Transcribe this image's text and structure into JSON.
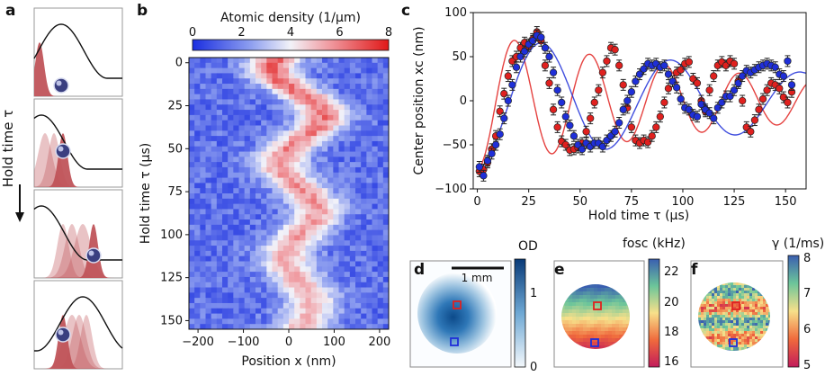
{
  "panels": {
    "a": "a",
    "b": "b",
    "c": "c",
    "d": "d",
    "e": "e",
    "f": "f"
  },
  "panel_a": {
    "axis_label": "Hold time τ",
    "colors": {
      "atom": "#c0545a",
      "trap": "#111111",
      "sphere": "#3a3f80"
    }
  },
  "panel_b": {
    "colorbar_label": "Atomic density (1/μm)",
    "colorbar_ticks": [
      "0",
      "2",
      "4",
      "6",
      "8"
    ],
    "xlabel": "Position x (nm)",
    "ylabel": "Hold time τ (μs)",
    "xticks": [
      "−200",
      "−100",
      "0",
      "100",
      "200"
    ],
    "yticks": [
      "0",
      "25",
      "50",
      "75",
      "100",
      "125",
      "150"
    ],
    "colormap": [
      "#1a2ee0",
      "#8fa0f0",
      "#f2f2f8",
      "#f09aa0",
      "#e01818"
    ]
  },
  "panel_d": {
    "scalebar_label": "1 mm",
    "colorbar_label": "OD",
    "colorbar_ticks": [
      "1",
      "0"
    ]
  },
  "panel_e": {
    "colorbar_label": "fosc (kHz)",
    "colorbar_ticks": [
      "22",
      "20",
      "18",
      "16"
    ]
  },
  "panel_f": {
    "colorbar_label": "γ (1/ms)",
    "colorbar_ticks": [
      "8",
      "7",
      "6",
      "5"
    ]
  },
  "chart_data": {
    "type": "scatter",
    "title": "",
    "xlabel": "Hold time τ (μs)",
    "ylabel": "Center position xc (nm)",
    "xlim": [
      -2,
      160
    ],
    "ylim": [
      -100,
      100
    ],
    "xticks": [
      "0",
      "25",
      "50",
      "75",
      "100",
      "125",
      "150"
    ],
    "yticks": [
      "100",
      "50",
      "0",
      "−50",
      "−100"
    ],
    "series": [
      {
        "color": "#e0211f",
        "x": [
          1,
          3,
          5,
          7,
          9,
          11,
          13,
          15,
          17,
          19,
          21,
          23,
          25,
          27,
          29,
          31,
          33,
          35,
          37,
          39,
          41,
          43,
          45,
          47,
          49,
          51,
          53,
          55,
          57,
          59,
          61,
          63,
          65,
          67,
          69,
          71,
          73,
          75,
          77,
          79,
          81,
          83,
          85,
          87,
          89,
          91,
          93,
          95,
          97,
          99,
          101,
          103,
          105,
          107,
          109,
          111,
          113,
          115,
          117,
          119,
          121,
          123,
          125,
          127,
          129,
          131,
          133,
          135,
          137,
          139,
          141,
          143,
          145,
          147,
          149,
          151,
          153
        ],
        "y": [
          -80,
          -78,
          -70,
          -55,
          -40,
          -12,
          8,
          28,
          45,
          50,
          60,
          66,
          62,
          70,
          78,
          68,
          40,
          20,
          -10,
          -30,
          -46,
          -50,
          -56,
          -55,
          -53,
          -48,
          -35,
          -20,
          -2,
          12,
          32,
          45,
          60,
          58,
          40,
          18,
          -8,
          -30,
          -45,
          -48,
          -45,
          -47,
          -40,
          -30,
          -18,
          -2,
          14,
          22,
          32,
          35,
          42,
          44,
          25,
          20,
          0,
          -12,
          12,
          28,
          40,
          44,
          40,
          45,
          42,
          22,
          0,
          -30,
          -35,
          -22,
          -10,
          2,
          12,
          20,
          18,
          14,
          4,
          -2,
          10
        ],
        "fit_amp": 78,
        "fit_period": 36.5,
        "fit_decay": 140
      },
      {
        "color": "#1f2fd8",
        "x": [
          1,
          3,
          5,
          7,
          9,
          11,
          13,
          15,
          17,
          19,
          21,
          23,
          25,
          27,
          29,
          31,
          33,
          35,
          37,
          39,
          41,
          43,
          45,
          47,
          49,
          51,
          53,
          55,
          57,
          59,
          61,
          63,
          65,
          67,
          69,
          71,
          73,
          75,
          77,
          79,
          81,
          83,
          85,
          87,
          89,
          91,
          93,
          95,
          97,
          99,
          101,
          103,
          105,
          107,
          109,
          111,
          113,
          115,
          117,
          119,
          121,
          123,
          125,
          127,
          129,
          131,
          133,
          135,
          137,
          139,
          141,
          143,
          145,
          147,
          149,
          151,
          153
        ],
        "y": [
          -75,
          -85,
          -68,
          -60,
          -50,
          -38,
          -20,
          0,
          18,
          38,
          50,
          56,
          64,
          68,
          74,
          72,
          60,
          50,
          32,
          12,
          -2,
          -18,
          -28,
          -40,
          -50,
          -55,
          -48,
          -52,
          -48,
          -48,
          -52,
          -45,
          -40,
          -35,
          -25,
          -10,
          0,
          10,
          22,
          30,
          36,
          42,
          40,
          42,
          38,
          40,
          30,
          22,
          15,
          2,
          -8,
          -10,
          -16,
          -18,
          -4,
          -10,
          -14,
          -20,
          -8,
          -2,
          5,
          5,
          12,
          20,
          28,
          34,
          32,
          35,
          38,
          40,
          42,
          40,
          38,
          30,
          28,
          45,
          18
        ],
        "fit_amp": 78,
        "fit_period": 63,
        "fit_decay": 180
      }
    ]
  }
}
